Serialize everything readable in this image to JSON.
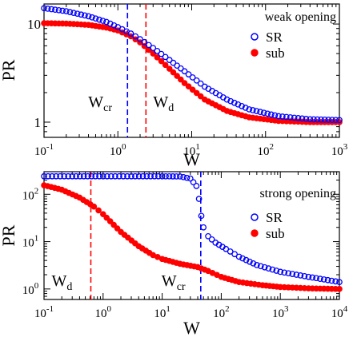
{
  "chart_data": [
    {
      "type": "scatter",
      "panel": "top",
      "annotation": "weak opening",
      "xlabel": "W",
      "ylabel": "PR",
      "xscale": "log",
      "yscale": "log",
      "xlim": [
        0.1,
        1000
      ],
      "ylim": [
        0.7,
        16
      ],
      "x_tick_labels": [
        {
          "b": "10",
          "e": "-1"
        },
        {
          "b": "10",
          "e": "0"
        },
        {
          "b": "10",
          "e": "1"
        },
        {
          "b": "10",
          "e": "2"
        },
        {
          "b": "10",
          "e": "3"
        }
      ],
      "y_tick_labels": [
        "1",
        "10"
      ],
      "legend": {
        "placement": "right",
        "entries": [
          "SR",
          "sub"
        ]
      },
      "series": [
        {
          "name": "SR",
          "marker": "open-circle",
          "color": "#0000ff",
          "x": [
            0.1,
            0.2,
            0.4,
            0.7,
            1.0,
            1.5,
            2.0,
            3.0,
            5.0,
            8.0,
            15,
            30,
            60,
            150,
            400,
            1000
          ],
          "y": [
            14.5,
            13.5,
            12,
            10.5,
            9.3,
            8,
            7,
            5.7,
            4.3,
            3.3,
            2.3,
            1.7,
            1.35,
            1.15,
            1.07,
            1.05
          ]
        },
        {
          "name": "sub",
          "marker": "filled-circle",
          "color": "#ff0000",
          "x": [
            0.1,
            0.2,
            0.4,
            0.7,
            1.0,
            1.5,
            2.0,
            3.0,
            5.0,
            8.0,
            15,
            30,
            60,
            150,
            400,
            1000
          ],
          "y": [
            10.2,
            10.1,
            9.8,
            9.2,
            8.6,
            7.5,
            6.5,
            5.0,
            3.5,
            2.5,
            1.7,
            1.3,
            1.12,
            1.03,
            1.0,
            1.0
          ]
        }
      ],
      "markers": [
        {
          "label": "W",
          "sub": "cr",
          "x": 1.35,
          "color": "#0000ff"
        },
        {
          "label": "W",
          "sub": "d",
          "x": 2.4,
          "color": "#ff0000"
        }
      ]
    },
    {
      "type": "scatter",
      "panel": "bottom",
      "annotation": "strong opening",
      "xlabel": "W",
      "ylabel": "PR",
      "xscale": "log",
      "yscale": "log",
      "xlim": [
        0.1,
        10000
      ],
      "ylim": [
        0.6,
        300
      ],
      "x_tick_labels": [
        {
          "b": "10",
          "e": "-1"
        },
        {
          "b": "10",
          "e": "0"
        },
        {
          "b": "10",
          "e": "1"
        },
        {
          "b": "10",
          "e": "2"
        },
        {
          "b": "10",
          "e": "3"
        },
        {
          "b": "10",
          "e": "4"
        }
      ],
      "y_tick_labels": [
        {
          "b": "10",
          "e": "0"
        },
        {
          "b": "10",
          "e": "1"
        },
        {
          "b": "10",
          "e": "2"
        }
      ],
      "legend": {
        "placement": "right",
        "entries": [
          "SR",
          "sub"
        ]
      },
      "series": [
        {
          "name": "SR",
          "marker": "open-circle",
          "color": "#0000ff",
          "x": [
            0.1,
            0.3,
            1,
            3,
            10,
            20,
            30,
            38,
            42,
            46,
            50,
            60,
            80,
            120,
            200,
            400,
            1000,
            3000,
            10000
          ],
          "y": [
            240,
            240,
            240,
            240,
            240,
            238,
            215,
            150,
            80,
            35,
            20,
            13,
            9.5,
            7,
            4.8,
            3.2,
            2.3,
            1.8,
            1.4
          ]
        },
        {
          "name": "sub",
          "marker": "filled-circle",
          "color": "#ff0000",
          "x": [
            0.1,
            0.2,
            0.4,
            0.7,
            1,
            2,
            4,
            7,
            10,
            20,
            40,
            60,
            100,
            200,
            500,
            1000,
            3000,
            10000
          ],
          "y": [
            155,
            125,
            85,
            55,
            38,
            16,
            8,
            5.2,
            4.3,
            3.4,
            2.9,
            2.4,
            1.8,
            1.4,
            1.2,
            1.1,
            1.03,
            1.0
          ]
        }
      ],
      "markers": [
        {
          "label": "W",
          "sub": "d",
          "x": 0.62,
          "color": "#ff0000"
        },
        {
          "label": "W",
          "sub": "cr",
          "x": 45,
          "color": "#0000ff"
        }
      ]
    }
  ]
}
